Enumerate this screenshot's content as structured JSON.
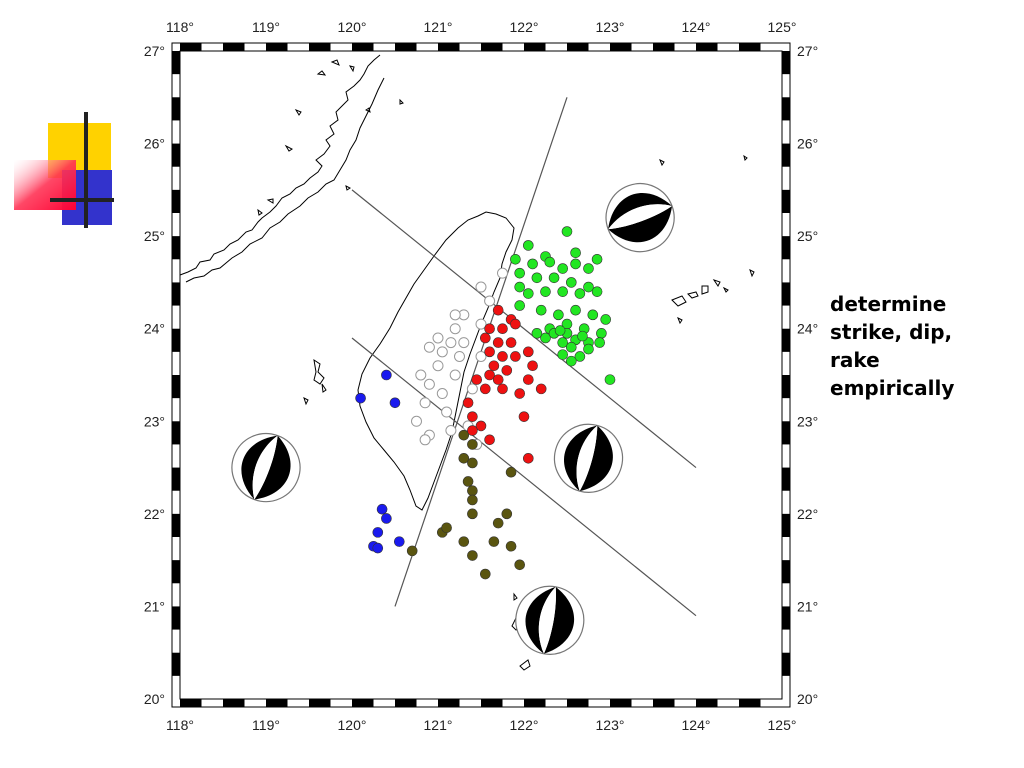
{
  "caption": {
    "lines": [
      "determine",
      "strike, dip,",
      "rake",
      "empirically"
    ]
  },
  "map": {
    "lon_range": [
      118,
      125
    ],
    "lat_range": [
      20,
      27
    ],
    "lon_ticks": [
      "118°",
      "119°",
      "120°",
      "121°",
      "122°",
      "123°",
      "124°",
      "125°"
    ],
    "lat_ticks": [
      "27°",
      "26°",
      "25°",
      "24°",
      "23°",
      "22°",
      "21°",
      "20°"
    ],
    "frame_style": "alternating black/white border"
  },
  "colors": {
    "green": "#22e622",
    "red": "#ee1111",
    "blue": "#1a1aee",
    "olive": "#5a5510",
    "open": "#ffffff",
    "coast": "#000000",
    "profile": "#555555"
  },
  "profiles": [
    {
      "from": [
        120.0,
        25.5
      ],
      "to": [
        124.0,
        22.5
      ]
    },
    {
      "from": [
        120.0,
        23.9
      ],
      "to": [
        124.0,
        20.9
      ]
    },
    {
      "from": [
        120.5,
        21.0
      ],
      "to": [
        122.5,
        26.5
      ]
    }
  ],
  "events": {
    "green": [
      [
        122.5,
        25.05
      ],
      [
        122.05,
        24.9
      ],
      [
        122.25,
        24.78
      ],
      [
        122.6,
        24.82
      ],
      [
        122.85,
        24.75
      ],
      [
        121.9,
        24.75
      ],
      [
        122.1,
        24.7
      ],
      [
        122.3,
        24.72
      ],
      [
        122.45,
        24.65
      ],
      [
        122.6,
        24.7
      ],
      [
        122.75,
        24.65
      ],
      [
        121.95,
        24.6
      ],
      [
        122.15,
        24.55
      ],
      [
        122.35,
        24.55
      ],
      [
        122.55,
        24.5
      ],
      [
        122.75,
        24.45
      ],
      [
        121.95,
        24.45
      ],
      [
        122.05,
        24.38
      ],
      [
        122.25,
        24.4
      ],
      [
        122.45,
        24.4
      ],
      [
        122.65,
        24.38
      ],
      [
        122.85,
        24.4
      ],
      [
        121.95,
        24.25
      ],
      [
        122.2,
        24.2
      ],
      [
        122.4,
        24.15
      ],
      [
        122.6,
        24.2
      ],
      [
        122.8,
        24.15
      ],
      [
        122.95,
        24.1
      ],
      [
        122.3,
        24.0
      ],
      [
        122.5,
        24.05
      ],
      [
        122.7,
        24.0
      ],
      [
        122.9,
        23.95
      ],
      [
        122.25,
        23.9
      ],
      [
        122.45,
        23.85
      ],
      [
        122.6,
        23.88
      ],
      [
        122.75,
        23.85
      ],
      [
        122.55,
        23.8
      ],
      [
        122.65,
        23.7
      ],
      [
        122.45,
        23.72
      ],
      [
        122.35,
        23.95
      ],
      [
        122.5,
        23.95
      ],
      [
        122.75,
        23.78
      ],
      [
        122.15,
        23.95
      ],
      [
        122.55,
        23.65
      ],
      [
        123.0,
        23.45
      ],
      [
        122.88,
        23.85
      ],
      [
        122.42,
        23.98
      ],
      [
        122.68,
        23.92
      ]
    ],
    "red": [
      [
        121.7,
        24.2
      ],
      [
        121.85,
        24.1
      ],
      [
        121.6,
        24.0
      ],
      [
        121.75,
        24.0
      ],
      [
        121.9,
        24.05
      ],
      [
        121.55,
        23.9
      ],
      [
        121.7,
        23.85
      ],
      [
        121.85,
        23.85
      ],
      [
        121.6,
        23.75
      ],
      [
        121.75,
        23.7
      ],
      [
        121.9,
        23.7
      ],
      [
        122.05,
        23.75
      ],
      [
        121.65,
        23.6
      ],
      [
        121.8,
        23.55
      ],
      [
        121.6,
        23.5
      ],
      [
        121.7,
        23.45
      ],
      [
        121.45,
        23.45
      ],
      [
        122.1,
        23.6
      ],
      [
        121.55,
        23.35
      ],
      [
        121.75,
        23.35
      ],
      [
        121.95,
        23.3
      ],
      [
        122.05,
        23.45
      ],
      [
        122.2,
        23.35
      ],
      [
        121.35,
        23.2
      ],
      [
        121.4,
        23.05
      ],
      [
        121.5,
        22.95
      ],
      [
        122.0,
        23.05
      ],
      [
        121.4,
        22.9
      ],
      [
        121.6,
        22.8
      ],
      [
        122.05,
        22.6
      ]
    ],
    "blue": [
      [
        120.4,
        23.5
      ],
      [
        120.1,
        23.25
      ],
      [
        120.5,
        23.2
      ],
      [
        120.35,
        22.05
      ],
      [
        120.4,
        21.95
      ],
      [
        120.3,
        21.8
      ],
      [
        120.25,
        21.65
      ],
      [
        120.3,
        21.63
      ],
      [
        120.55,
        21.7
      ]
    ],
    "olive": [
      [
        121.3,
        22.85
      ],
      [
        121.4,
        22.75
      ],
      [
        121.3,
        22.6
      ],
      [
        121.4,
        22.55
      ],
      [
        121.85,
        22.45
      ],
      [
        121.35,
        22.35
      ],
      [
        121.4,
        22.25
      ],
      [
        121.4,
        22.15
      ],
      [
        121.4,
        22.0
      ],
      [
        121.8,
        22.0
      ],
      [
        121.7,
        21.9
      ],
      [
        121.05,
        21.8
      ],
      [
        121.1,
        21.85
      ],
      [
        121.3,
        21.7
      ],
      [
        121.65,
        21.7
      ],
      [
        121.85,
        21.65
      ],
      [
        121.4,
        21.55
      ],
      [
        121.95,
        21.45
      ],
      [
        121.55,
        21.35
      ],
      [
        120.7,
        21.6
      ]
    ],
    "open": [
      [
        121.75,
        24.6
      ],
      [
        121.5,
        24.45
      ],
      [
        121.6,
        24.3
      ],
      [
        121.3,
        24.15
      ],
      [
        121.2,
        24.15
      ],
      [
        121.5,
        24.05
      ],
      [
        121.2,
        24.0
      ],
      [
        121.0,
        23.9
      ],
      [
        121.15,
        23.85
      ],
      [
        121.3,
        23.85
      ],
      [
        120.9,
        23.8
      ],
      [
        121.05,
        23.75
      ],
      [
        121.25,
        23.7
      ],
      [
        121.5,
        23.7
      ],
      [
        121.0,
        23.6
      ],
      [
        120.8,
        23.5
      ],
      [
        121.2,
        23.5
      ],
      [
        120.9,
        23.4
      ],
      [
        121.05,
        23.3
      ],
      [
        121.4,
        23.35
      ],
      [
        120.85,
        23.2
      ],
      [
        121.1,
        23.1
      ],
      [
        120.75,
        23.0
      ],
      [
        121.15,
        22.9
      ],
      [
        120.9,
        22.85
      ],
      [
        121.45,
        22.75
      ],
      [
        120.85,
        22.8
      ],
      [
        121.35,
        22.95
      ]
    ]
  },
  "focal_mechanisms": [
    {
      "name": "northeast",
      "lon": 123.35,
      "lat": 25.2,
      "strike": 70
    },
    {
      "name": "west",
      "lon": 119.0,
      "lat": 22.5,
      "strike": 20
    },
    {
      "name": "east",
      "lon": 122.75,
      "lat": 22.6,
      "strike": 15
    },
    {
      "name": "south",
      "lon": 122.3,
      "lat": 20.85,
      "strike": 10
    }
  ]
}
